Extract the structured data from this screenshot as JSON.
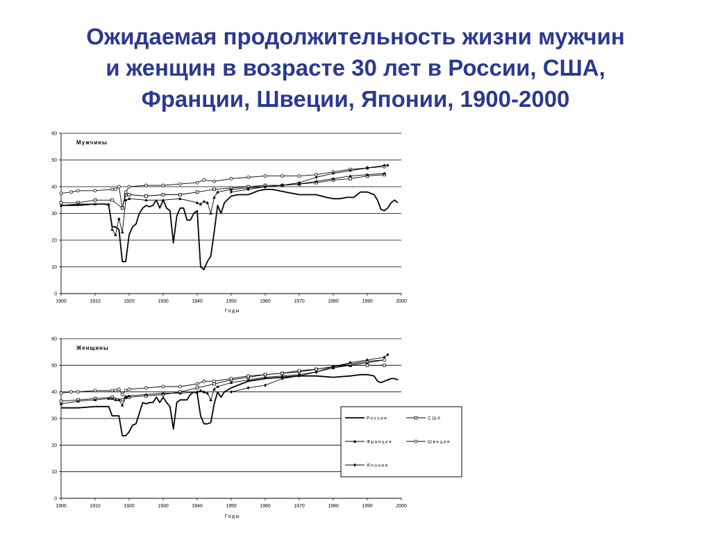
{
  "title_lines": [
    "Ожидаемая продолжительность жизни мужчин",
    "и женщин в возрасте 30 лет в России, США,",
    "Франции, Швеции, Японии, 1900-2000"
  ],
  "colors": {
    "title": "#2b3990",
    "series": "#000000",
    "grid": "#000000"
  },
  "legend": [
    "Россия",
    "США",
    "Франция",
    "Швеция",
    "Япония"
  ],
  "chart_data": [
    {
      "type": "line",
      "panel_label": "Мужчины",
      "xlabel": "Годы",
      "ylabel": "",
      "xlim": [
        1900,
        2000
      ],
      "ylim": [
        0,
        60
      ],
      "xticks": [
        "1900",
        "1910",
        "1920",
        "1930",
        "1940",
        "1950",
        "1960",
        "1970",
        "1980",
        "1990",
        "2000"
      ],
      "yticks": [
        "0",
        "10",
        "20",
        "30",
        "40",
        "50",
        "60"
      ],
      "grid": true,
      "series": [
        {
          "name": "Россия",
          "marker": "none",
          "x": [
            1900,
            1905,
            1910,
            1913,
            1914,
            1915,
            1916,
            1917,
            1918,
            1919,
            1920,
            1921,
            1922,
            1923,
            1924,
            1925,
            1926,
            1927,
            1928,
            1929,
            1930,
            1931,
            1932,
            1933,
            1934,
            1935,
            1936,
            1937,
            1938,
            1939,
            1940,
            1941,
            1942,
            1943,
            1944,
            1945,
            1946,
            1947,
            1948,
            1950,
            1952,
            1955,
            1958,
            1960,
            1962,
            1964,
            1966,
            1968,
            1970,
            1972,
            1975,
            1978,
            1980,
            1982,
            1984,
            1986,
            1988,
            1990,
            1992,
            1993,
            1994,
            1995,
            1996,
            1997,
            1998,
            1999
          ],
          "values": [
            33,
            33,
            33.5,
            33.5,
            33,
            25,
            25,
            24,
            12,
            12,
            22,
            25,
            26,
            30,
            32,
            33,
            32.5,
            33,
            35,
            32,
            35,
            32,
            31,
            19,
            29,
            32,
            32,
            27.5,
            27.5,
            30,
            31,
            10,
            9,
            12,
            14,
            23,
            33,
            30,
            34,
            36.5,
            37,
            37,
            38.5,
            39,
            39,
            38.5,
            38,
            37.5,
            37,
            37,
            37,
            36,
            35.5,
            35.5,
            36,
            36,
            38,
            38,
            37,
            35,
            31.5,
            31,
            32,
            34,
            35,
            34
          ]
        },
        {
          "name": "США",
          "marker": "square",
          "x": [
            1900,
            1905,
            1910,
            1915,
            1918,
            1919,
            1920,
            1925,
            1930,
            1935,
            1940,
            1945,
            1950,
            1955,
            1960,
            1965,
            1970,
            1975,
            1980,
            1985,
            1990,
            1995
          ],
          "values": [
            34,
            34,
            35,
            35,
            32,
            37,
            37,
            36.5,
            37,
            37,
            38,
            39,
            39.5,
            40,
            40.5,
            40.5,
            41,
            41.5,
            42.5,
            43,
            44,
            44.5
          ]
        },
        {
          "name": "Франция",
          "marker": "triangle",
          "x": [
            1900,
            1905,
            1910,
            1914,
            1915,
            1916,
            1917,
            1918,
            1919,
            1920,
            1925,
            1930,
            1935,
            1940,
            1941,
            1942,
            1943,
            1944,
            1945,
            1946,
            1950,
            1955,
            1960,
            1965,
            1970,
            1975,
            1980,
            1985,
            1990,
            1995
          ],
          "values": [
            33,
            33.5,
            33.5,
            33.5,
            24,
            22,
            28,
            23,
            35,
            35.5,
            35,
            35,
            35.5,
            34,
            33.5,
            34.5,
            34,
            30,
            36,
            38,
            39,
            39.5,
            40,
            40.5,
            41,
            42,
            43,
            44,
            44.5,
            45
          ]
        },
        {
          "name": "Швеция",
          "marker": "circle",
          "x": [
            1900,
            1903,
            1905,
            1910,
            1915,
            1916,
            1917,
            1918,
            1919,
            1920,
            1925,
            1930,
            1935,
            1940,
            1942,
            1945,
            1950,
            1955,
            1960,
            1965,
            1970,
            1975,
            1980,
            1985,
            1990,
            1995
          ],
          "values": [
            37.5,
            38,
            38.5,
            38.5,
            39,
            39,
            40,
            32,
            38,
            40,
            40.5,
            40.5,
            41,
            41.5,
            42.5,
            42,
            43,
            43.5,
            44,
            44,
            44,
            44.5,
            45.5,
            46.5,
            47,
            47.5
          ]
        },
        {
          "name": "Япония",
          "marker": "diamond",
          "x": [
            1950,
            1955,
            1960,
            1965,
            1970,
            1975,
            1980,
            1985,
            1990,
            1995,
            1996
          ],
          "values": [
            38,
            39,
            40,
            40.5,
            41.5,
            43.5,
            45,
            46,
            47,
            48,
            48
          ]
        }
      ]
    },
    {
      "type": "line",
      "panel_label": "Женщины",
      "xlabel": "Годы",
      "ylabel": "",
      "xlim": [
        1900,
        2000
      ],
      "ylim": [
        0,
        60
      ],
      "xticks": [
        "1900",
        "1910",
        "1920",
        "1930",
        "1940",
        "1950",
        "1960",
        "1970",
        "1980",
        "1990",
        "2000"
      ],
      "yticks": [
        "0",
        "10",
        "20",
        "30",
        "40",
        "50",
        "60"
      ],
      "grid": true,
      "series": [
        {
          "name": "Россия",
          "marker": "none",
          "x": [
            1900,
            1905,
            1910,
            1914,
            1915,
            1916,
            1917,
            1918,
            1919,
            1920,
            1921,
            1922,
            1923,
            1924,
            1925,
            1926,
            1927,
            1928,
            1929,
            1930,
            1931,
            1932,
            1933,
            1934,
            1935,
            1936,
            1937,
            1938,
            1939,
            1940,
            1941,
            1942,
            1943,
            1944,
            1945,
            1946,
            1947,
            1948,
            1950,
            1955,
            1960,
            1965,
            1970,
            1975,
            1980,
            1985,
            1988,
            1990,
            1992,
            1993,
            1994,
            1995,
            1996,
            1997,
            1998,
            1999
          ],
          "values": [
            34,
            34,
            34.5,
            34.5,
            31,
            31,
            31,
            23.5,
            23.5,
            25,
            27.5,
            28,
            32,
            36,
            35.5,
            36,
            36,
            38,
            36,
            38,
            36,
            34.5,
            26,
            36,
            37,
            37,
            37,
            39,
            40,
            39.5,
            31,
            28,
            28,
            28.5,
            35.5,
            40,
            38,
            40,
            41.5,
            44,
            45,
            45.5,
            46,
            46,
            45.5,
            46,
            46.5,
            46.5,
            46,
            44,
            43.5,
            44,
            44.5,
            45,
            45,
            44.5
          ]
        },
        {
          "name": "США",
          "marker": "square",
          "x": [
            1900,
            1905,
            1910,
            1915,
            1918,
            1919,
            1920,
            1925,
            1930,
            1935,
            1940,
            1945,
            1950,
            1955,
            1960,
            1965,
            1970,
            1975,
            1980,
            1985,
            1990,
            1995
          ],
          "values": [
            36.5,
            37,
            37.5,
            38,
            37,
            38,
            38,
            38.5,
            39,
            40,
            41.5,
            43,
            44.5,
            45.5,
            46.5,
            47,
            47.5,
            48.5,
            49.5,
            50,
            50,
            50
          ]
        },
        {
          "name": "Франция",
          "marker": "triangle",
          "x": [
            1900,
            1905,
            1910,
            1914,
            1915,
            1916,
            1917,
            1918,
            1919,
            1920,
            1925,
            1930,
            1935,
            1940,
            1941,
            1942,
            1943,
            1944,
            1945,
            1946,
            1950,
            1955,
            1960,
            1965,
            1970,
            1975,
            1980,
            1985,
            1990,
            1995
          ],
          "values": [
            35.5,
            36.5,
            37,
            37.5,
            37.5,
            37,
            37,
            35,
            38,
            38.5,
            39,
            39.5,
            39.5,
            40,
            40.5,
            40,
            39.5,
            37,
            41,
            42,
            43.5,
            44.5,
            45.5,
            46,
            46.5,
            47.5,
            49,
            50,
            51,
            52
          ]
        },
        {
          "name": "Швеция",
          "marker": "circle",
          "x": [
            1900,
            1903,
            1905,
            1910,
            1915,
            1916,
            1917,
            1918,
            1919,
            1920,
            1925,
            1930,
            1935,
            1940,
            1942,
            1945,
            1950,
            1955,
            1960,
            1965,
            1970,
            1975,
            1980,
            1985,
            1990,
            1995
          ],
          "values": [
            39.5,
            40,
            40,
            40.5,
            40.5,
            40.5,
            41,
            39,
            40.5,
            41,
            41.5,
            42,
            42,
            43,
            44,
            44,
            45,
            46,
            46.5,
            47,
            48,
            48.5,
            49.5,
            50.5,
            51.5,
            52
          ]
        },
        {
          "name": "Япония",
          "marker": "diamond",
          "x": [
            1950,
            1955,
            1960,
            1965,
            1970,
            1975,
            1980,
            1985,
            1990,
            1995,
            1996
          ],
          "values": [
            40,
            41.5,
            42.5,
            45,
            46,
            47.5,
            49.5,
            51,
            52,
            53,
            54
          ]
        }
      ]
    }
  ]
}
